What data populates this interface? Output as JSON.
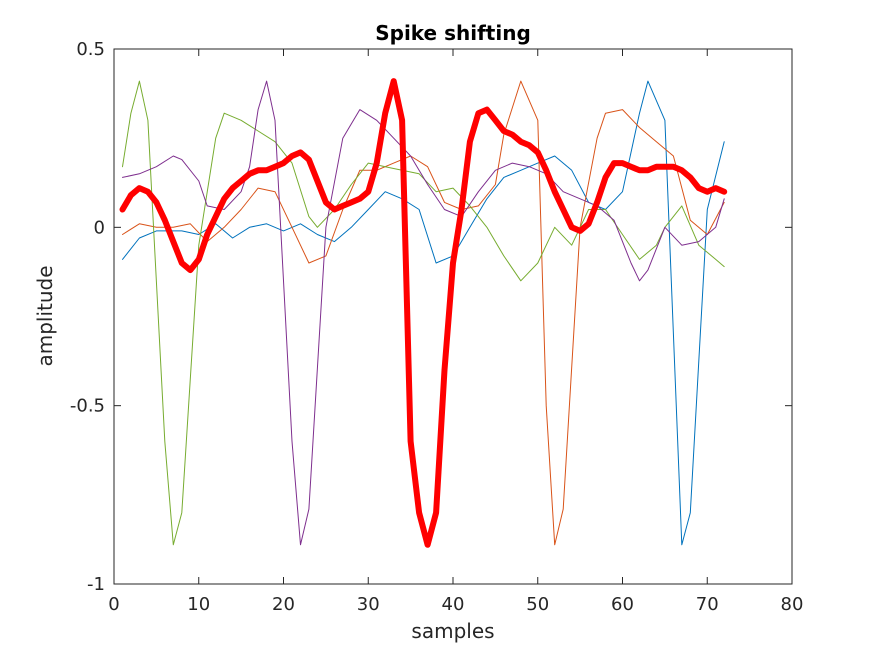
{
  "chart_data": {
    "type": "line",
    "title": "Spike shifting",
    "xlabel": "samples",
    "ylabel": "amplitude",
    "xlim": [
      0,
      80
    ],
    "ylim": [
      -1,
      0.5
    ],
    "xticks": [
      0,
      10,
      20,
      30,
      40,
      50,
      60,
      70,
      80
    ],
    "yticks": [
      -1,
      -0.5,
      0,
      0.5
    ],
    "xtick_labels": [
      "0",
      "10",
      "20",
      "30",
      "40",
      "50",
      "60",
      "70",
      "80"
    ],
    "ytick_labels": [
      "-1",
      "-0.5",
      "0",
      "0.5"
    ],
    "grid": false,
    "legend": "none",
    "series": [
      {
        "color": "#0072BD",
        "emphasis": false,
        "x": [
          1,
          3,
          5,
          8,
          10,
          12,
          14,
          16,
          18,
          20,
          22,
          24,
          26,
          28,
          30,
          32,
          34,
          36,
          38,
          40,
          42,
          44,
          46,
          48,
          50,
          52,
          54,
          56,
          58,
          60,
          62,
          63,
          65,
          67,
          68,
          70,
          72
        ],
        "y": [
          -0.09,
          -0.03,
          -0.01,
          -0.01,
          -0.02,
          0.01,
          -0.03,
          0.0,
          0.01,
          -0.01,
          0.01,
          -0.02,
          -0.04,
          0.0,
          0.05,
          0.1,
          0.08,
          0.05,
          -0.1,
          -0.08,
          0.0,
          0.08,
          0.14,
          0.16,
          0.18,
          0.2,
          0.16,
          0.07,
          0.05,
          0.1,
          0.32,
          0.41,
          0.3,
          -0.89,
          -0.8,
          0.05,
          0.24
        ]
      },
      {
        "color": "#D95319",
        "emphasis": false,
        "x": [
          1,
          3,
          5,
          7,
          9,
          11,
          13,
          15,
          17,
          19,
          21,
          23,
          25,
          27,
          29,
          31,
          33,
          35,
          37,
          39,
          41,
          43,
          45,
          46,
          48,
          50,
          51,
          52,
          53,
          55,
          57,
          58,
          60,
          62,
          64,
          66,
          68,
          70,
          72
        ],
        "y": [
          -0.02,
          0.01,
          0.0,
          0.0,
          0.01,
          -0.04,
          0.0,
          0.05,
          0.11,
          0.1,
          0.0,
          -0.1,
          -0.08,
          0.05,
          0.16,
          0.16,
          0.18,
          0.2,
          0.17,
          0.07,
          0.05,
          0.06,
          0.12,
          0.26,
          0.41,
          0.3,
          -0.5,
          -0.89,
          -0.79,
          0.0,
          0.25,
          0.32,
          0.33,
          0.28,
          0.24,
          0.2,
          0.02,
          -0.02,
          0.07
        ]
      },
      {
        "color": "#77AC30",
        "emphasis": false,
        "x": [
          1,
          2,
          3,
          4,
          6,
          7,
          8,
          10,
          12,
          13,
          15,
          17,
          19,
          21,
          23,
          24,
          26,
          28,
          30,
          32,
          34,
          36,
          38,
          40,
          42,
          44,
          46,
          48,
          50,
          52,
          54,
          56,
          58,
          60,
          62,
          64,
          65,
          67,
          69,
          71,
          72
        ],
        "y": [
          0.17,
          0.32,
          0.41,
          0.3,
          -0.6,
          -0.89,
          -0.8,
          -0.05,
          0.25,
          0.32,
          0.3,
          0.27,
          0.24,
          0.18,
          0.03,
          0.0,
          0.05,
          0.12,
          0.18,
          0.17,
          0.16,
          0.15,
          0.1,
          0.11,
          0.06,
          0.0,
          -0.08,
          -0.15,
          -0.1,
          0.0,
          -0.05,
          0.05,
          0.05,
          -0.02,
          -0.09,
          -0.05,
          0.0,
          0.06,
          -0.05,
          -0.09,
          -0.11
        ]
      },
      {
        "color": "#7E2F8E",
        "emphasis": false,
        "x": [
          1,
          3,
          5,
          7,
          8,
          10,
          11,
          13,
          15,
          16,
          17,
          18,
          19,
          21,
          22,
          23,
          25,
          27,
          29,
          31,
          33,
          35,
          37,
          39,
          41,
          43,
          45,
          47,
          49,
          51,
          53,
          55,
          57,
          59,
          61,
          62,
          63,
          65,
          67,
          69,
          71,
          72
        ],
        "y": [
          0.14,
          0.15,
          0.17,
          0.2,
          0.19,
          0.13,
          0.06,
          0.05,
          0.1,
          0.17,
          0.33,
          0.41,
          0.3,
          -0.6,
          -0.89,
          -0.79,
          0.0,
          0.25,
          0.33,
          0.3,
          0.25,
          0.2,
          0.12,
          0.05,
          0.03,
          0.1,
          0.16,
          0.18,
          0.17,
          0.15,
          0.1,
          0.08,
          0.06,
          0.02,
          -0.1,
          -0.15,
          -0.12,
          0.0,
          -0.05,
          -0.04,
          0.0,
          0.08
        ]
      },
      {
        "color": "#FF0000",
        "emphasis": true,
        "x": [
          1,
          2,
          3,
          4,
          5,
          6,
          7,
          8,
          9,
          10,
          11,
          12,
          13,
          14,
          15,
          16,
          17,
          18,
          19,
          20,
          21,
          22,
          23,
          24,
          25,
          26,
          27,
          28,
          29,
          30,
          31,
          32,
          33,
          34,
          35,
          36,
          37,
          38,
          39,
          40,
          41,
          42,
          43,
          44,
          45,
          46,
          47,
          48,
          49,
          50,
          51,
          52,
          53,
          54,
          55,
          56,
          57,
          58,
          59,
          60,
          61,
          62,
          63,
          64,
          65,
          66,
          67,
          68,
          69,
          70,
          71,
          72
        ],
        "y": [
          0.05,
          0.09,
          0.11,
          0.1,
          0.07,
          0.02,
          -0.04,
          -0.1,
          -0.12,
          -0.09,
          -0.02,
          0.03,
          0.08,
          0.11,
          0.13,
          0.15,
          0.16,
          0.16,
          0.17,
          0.18,
          0.2,
          0.21,
          0.19,
          0.13,
          0.07,
          0.05,
          0.06,
          0.07,
          0.08,
          0.1,
          0.18,
          0.32,
          0.41,
          0.3,
          -0.6,
          -0.8,
          -0.89,
          -0.8,
          -0.4,
          -0.1,
          0.05,
          0.24,
          0.32,
          0.33,
          0.3,
          0.27,
          0.26,
          0.24,
          0.23,
          0.21,
          0.16,
          0.1,
          0.05,
          0.0,
          -0.01,
          0.01,
          0.07,
          0.14,
          0.18,
          0.18,
          0.17,
          0.16,
          0.16,
          0.17,
          0.17,
          0.17,
          0.16,
          0.14,
          0.11,
          0.1,
          0.11,
          0.1
        ]
      }
    ]
  }
}
